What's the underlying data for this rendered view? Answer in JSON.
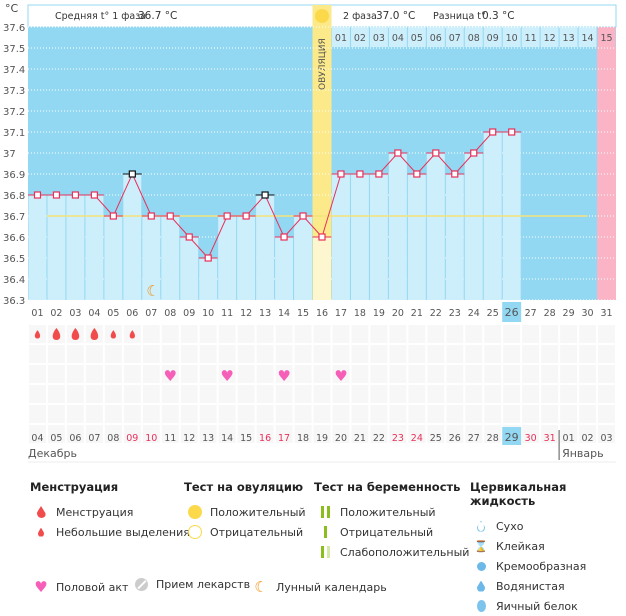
{
  "header": {
    "unit": "°C",
    "phase1_label": "Средняя t° 1 фаза",
    "phase1_value": "36.7 °C",
    "phase2_label": "2 фаза",
    "phase2_value": "37.0 °C",
    "diff_label": "Разница t°",
    "diff_value": "0.3 °C",
    "ovulation_label": "ОВУЛЯЦИЯ"
  },
  "chart_data": {
    "type": "line",
    "ylabel": "°C",
    "ylim": [
      36.3,
      37.6
    ],
    "yticks": [
      "37.6",
      "37.5",
      "37.4",
      "37.3",
      "37.2",
      "37.1",
      "37",
      "36.9",
      "36.8",
      "36.7",
      "36.6",
      "36.5",
      "36.4",
      "36.3"
    ],
    "categories": [
      "01",
      "02",
      "03",
      "04",
      "05",
      "06",
      "07",
      "08",
      "09",
      "10",
      "11",
      "12",
      "13",
      "14",
      "15",
      "16",
      "17",
      "18",
      "19",
      "20",
      "21",
      "22",
      "23",
      "24",
      "25",
      "26",
      "27",
      "28",
      "29",
      "30",
      "31"
    ],
    "temperatures": [
      36.8,
      36.8,
      36.8,
      36.8,
      36.7,
      36.9,
      36.7,
      36.7,
      36.6,
      36.5,
      36.7,
      36.7,
      36.8,
      36.6,
      36.7,
      36.6,
      36.9,
      36.9,
      36.9,
      37.0,
      36.9,
      37.0,
      36.9,
      37.0,
      37.1,
      37.1
    ],
    "excluded_days": [
      "06",
      "13"
    ],
    "coverline": 36.7,
    "ovulation_day": "16",
    "current_day": "26",
    "phase2_days": [
      "01",
      "02",
      "03",
      "04",
      "05",
      "06",
      "07",
      "08",
      "09",
      "10",
      "11",
      "12",
      "13",
      "14",
      "15"
    ],
    "menstruation": [
      {
        "day": "01",
        "size": "small"
      },
      {
        "day": "02",
        "size": "large"
      },
      {
        "day": "03",
        "size": "large"
      },
      {
        "day": "04",
        "size": "large"
      },
      {
        "day": "05",
        "size": "small"
      },
      {
        "day": "06",
        "size": "small"
      }
    ],
    "intercourse_days": [
      "08",
      "11",
      "14",
      "17"
    ],
    "moon_day": "07",
    "dates": [
      "04",
      "05",
      "06",
      "07",
      "08",
      "09",
      "10",
      "11",
      "12",
      "13",
      "14",
      "15",
      "16",
      "17",
      "18",
      "19",
      "20",
      "21",
      "22",
      "23",
      "24",
      "25",
      "26",
      "27",
      "28",
      "29",
      "30",
      "31",
      "01",
      "02",
      "03"
    ],
    "weekend_dates": [
      5,
      6,
      12,
      13,
      19,
      20,
      26,
      27
    ],
    "today_index": 25,
    "months": [
      "Декабрь",
      "Январь"
    ]
  },
  "legend": {
    "menstruation": {
      "title": "Менструация",
      "items": [
        "Менструация",
        "Небольшие выделения"
      ]
    },
    "ovulation_test": {
      "title": "Тест на овуляцию",
      "items": [
        "Положительный",
        "Отрицательный"
      ]
    },
    "pregnancy_test": {
      "title": "Тест на беременность",
      "items": [
        "Положительный",
        "Отрицательный",
        "Слабоположительный"
      ]
    },
    "cervical": {
      "title": "Цервикальная жидкость",
      "items": [
        "Сухо",
        "Клейкая",
        "Кремообразная",
        "Водянистая",
        "Яичный белок"
      ]
    },
    "bottom": [
      "Половой акт",
      "Прием лекарств",
      "Лунный календарь"
    ]
  },
  "colors": {
    "bg": "#93d8f2",
    "bar": "#cdeefb",
    "line": "#e8305a",
    "ovulation": "#fbe98a",
    "pink": "#fbb3c6",
    "coverline": "#f5e27a"
  }
}
